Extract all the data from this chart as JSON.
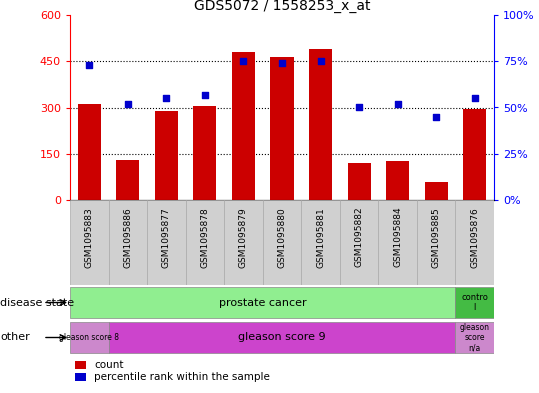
{
  "title": "GDS5072 / 1558253_x_at",
  "samples": [
    "GSM1095883",
    "GSM1095886",
    "GSM1095877",
    "GSM1095878",
    "GSM1095879",
    "GSM1095880",
    "GSM1095881",
    "GSM1095882",
    "GSM1095884",
    "GSM1095885",
    "GSM1095876"
  ],
  "counts": [
    310,
    130,
    290,
    305,
    480,
    465,
    490,
    120,
    125,
    60,
    295
  ],
  "percentiles": [
    73,
    52,
    55,
    57,
    75,
    74,
    75,
    50,
    52,
    45,
    55
  ],
  "ylim_left": [
    0,
    600
  ],
  "ylim_right": [
    0,
    100
  ],
  "yticks_left": [
    0,
    150,
    300,
    450,
    600
  ],
  "ytick_labels_left": [
    "0",
    "150",
    "300",
    "450",
    "600"
  ],
  "yticks_right": [
    0,
    25,
    50,
    75,
    100
  ],
  "ytick_labels_right": [
    "0%",
    "25%",
    "50%",
    "75%",
    "100%"
  ],
  "bar_color": "#cc0000",
  "dot_color": "#0000cc",
  "disease_state_green": "#90ee90",
  "disease_state_darkgreen": "#44bb44",
  "other_pink_light": "#cc88cc",
  "other_pink_dark": "#cc44cc",
  "gray_bg": "#d0d0d0",
  "legend_items": [
    {
      "label": "count",
      "color": "#cc0000"
    },
    {
      "label": "percentile rank within the sample",
      "color": "#0000cc"
    }
  ],
  "disease_state_label": "disease state",
  "other_label": "other"
}
